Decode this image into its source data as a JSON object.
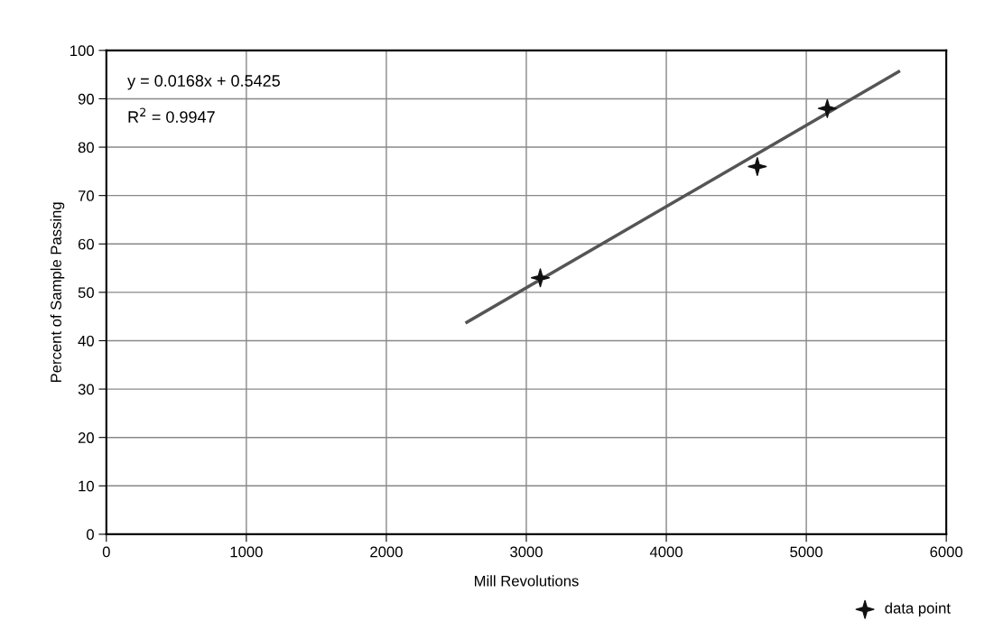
{
  "chart_data": {
    "type": "scatter",
    "xlabel": "Mill Revolutions",
    "ylabel": "Percent of Sample Passing",
    "xlim": [
      0,
      6000
    ],
    "xticks": [
      0,
      1000,
      2000,
      3000,
      4000,
      5000,
      6000
    ],
    "ylim": [
      0,
      100
    ],
    "yticks": [
      0,
      10,
      20,
      30,
      40,
      50,
      60,
      70,
      80,
      90,
      100
    ],
    "grid": true,
    "legend": "bottom right",
    "marker": "star",
    "annotations": [
      "y = 0.0168x + 0.5425",
      "R$^{2}$ = 0.9947"
    ],
    "series": [
      {
        "name": "data point",
        "color": "#111111",
        "x": [
          3100,
          4650,
          5150
        ],
        "values": [
          53,
          76,
          88
        ]
      },
      {
        "type": "line",
        "color": "#555555",
        "x": [
          2575,
          5660
        ],
        "values": [
          43.8,
          95.6
        ],
        "marker": "none",
        "line_style": "solid"
      }
    ]
  }
}
